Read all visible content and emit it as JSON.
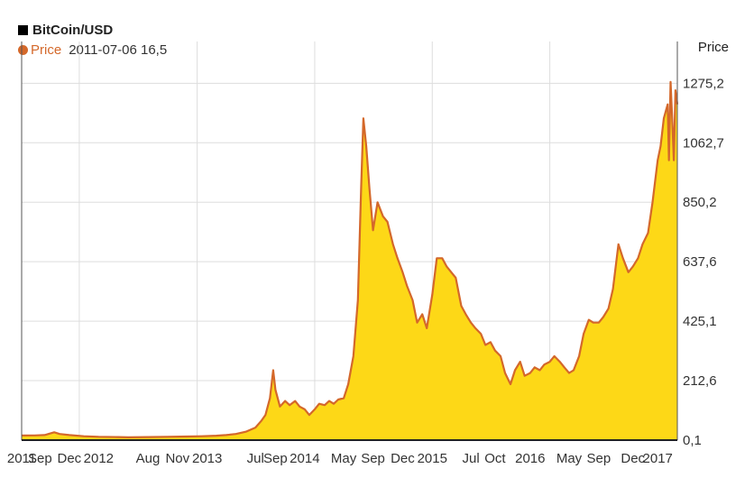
{
  "legend": {
    "title": "BitCoin/USD",
    "series_name": "Price",
    "highlight_date": "2011-07-06",
    "highlight_value": "16,5",
    "series_color": "#d4682a",
    "marker_color": "#000000"
  },
  "chart_data": {
    "type": "area",
    "title": "BitCoin/USD",
    "ylabel": "Price",
    "xlabel": "",
    "ylim": [
      0.1,
      1360
    ],
    "grid": true,
    "legend_position": "top-left",
    "line_color": "#d4682a",
    "fill_color": "#fdd817",
    "y_ticks": [
      {
        "value": 0.1,
        "label": "0,1"
      },
      {
        "value": 212.6,
        "label": "212,6"
      },
      {
        "value": 425.1,
        "label": "425,1"
      },
      {
        "value": 637.6,
        "label": "637,6"
      },
      {
        "value": 850.2,
        "label": "850,2"
      },
      {
        "value": 1062.7,
        "label": "1062,7"
      },
      {
        "value": 1275.2,
        "label": "1275,2"
      }
    ],
    "x_range": [
      "2011-07-06",
      "2017-01-31"
    ],
    "x_ticks": [
      {
        "date": "2011-07-06",
        "label": "2011"
      },
      {
        "date": "2011-09-01",
        "label": "Sep"
      },
      {
        "date": "2011-12-01",
        "label": "Dec"
      },
      {
        "date": "2012-03-01",
        "label": "2012"
      },
      {
        "date": "2012-08-01",
        "label": "Aug"
      },
      {
        "date": "2012-11-01",
        "label": "Nov"
      },
      {
        "date": "2013-02-01",
        "label": "2013"
      },
      {
        "date": "2013-07-01",
        "label": "Jul"
      },
      {
        "date": "2013-09-01",
        "label": "Sep"
      },
      {
        "date": "2013-12-01",
        "label": "2014"
      },
      {
        "date": "2014-04-01",
        "label": "May"
      },
      {
        "date": "2014-07-01",
        "label": "Sep"
      },
      {
        "date": "2014-10-01",
        "label": "Dec"
      },
      {
        "date": "2015-01-01",
        "label": "2015"
      },
      {
        "date": "2015-05-01",
        "label": "Jul"
      },
      {
        "date": "2015-07-15",
        "label": "Oct"
      },
      {
        "date": "2015-11-01",
        "label": "2016"
      },
      {
        "date": "2016-03-01",
        "label": "May"
      },
      {
        "date": "2016-06-01",
        "label": "Sep"
      },
      {
        "date": "2016-09-15",
        "label": "Dec"
      },
      {
        "date": "2016-12-01",
        "label": "2017"
      }
    ],
    "gridline_dates": [
      "2012-01-01",
      "2013-01-01",
      "2014-01-01",
      "2015-01-01",
      "2016-01-01"
    ],
    "series": [
      {
        "name": "Price",
        "points": [
          [
            "2011-07-06",
            16.5
          ],
          [
            "2011-08-15",
            17
          ],
          [
            "2011-09-15",
            18
          ],
          [
            "2011-10-15",
            28
          ],
          [
            "2011-11-01",
            22
          ],
          [
            "2011-12-01",
            18
          ],
          [
            "2012-01-15",
            14
          ],
          [
            "2012-03-01",
            12
          ],
          [
            "2012-05-01",
            11
          ],
          [
            "2012-06-01",
            10
          ],
          [
            "2012-08-01",
            11
          ],
          [
            "2012-10-01",
            12
          ],
          [
            "2012-12-01",
            13
          ],
          [
            "2013-01-15",
            14
          ],
          [
            "2013-03-01",
            16
          ],
          [
            "2013-04-01",
            18
          ],
          [
            "2013-05-01",
            22
          ],
          [
            "2013-06-01",
            30
          ],
          [
            "2013-07-01",
            45
          ],
          [
            "2013-07-20",
            70
          ],
          [
            "2013-08-01",
            90
          ],
          [
            "2013-08-15",
            150
          ],
          [
            "2013-08-25",
            250
          ],
          [
            "2013-09-01",
            180
          ],
          [
            "2013-09-15",
            120
          ],
          [
            "2013-10-01",
            140
          ],
          [
            "2013-10-15",
            125
          ],
          [
            "2013-11-01",
            140
          ],
          [
            "2013-11-15",
            120
          ],
          [
            "2013-12-01",
            110
          ],
          [
            "2013-12-15",
            90
          ],
          [
            "2014-01-01",
            110
          ],
          [
            "2014-01-15",
            130
          ],
          [
            "2014-02-01",
            125
          ],
          [
            "2014-02-15",
            140
          ],
          [
            "2014-03-01",
            130
          ],
          [
            "2014-03-15",
            145
          ],
          [
            "2014-04-01",
            150
          ],
          [
            "2014-04-15",
            200
          ],
          [
            "2014-05-01",
            300
          ],
          [
            "2014-05-15",
            500
          ],
          [
            "2014-05-25",
            900
          ],
          [
            "2014-06-01",
            1150
          ],
          [
            "2014-06-10",
            1050
          ],
          [
            "2014-06-20",
            900
          ],
          [
            "2014-07-01",
            750
          ],
          [
            "2014-07-15",
            850
          ],
          [
            "2014-08-01",
            800
          ],
          [
            "2014-08-15",
            780
          ],
          [
            "2014-09-01",
            700
          ],
          [
            "2014-09-15",
            650
          ],
          [
            "2014-10-01",
            600
          ],
          [
            "2014-10-15",
            550
          ],
          [
            "2014-11-01",
            500
          ],
          [
            "2014-11-15",
            420
          ],
          [
            "2014-12-01",
            450
          ],
          [
            "2014-12-15",
            400
          ],
          [
            "2015-01-01",
            520
          ],
          [
            "2015-01-15",
            650
          ],
          [
            "2015-02-01",
            650
          ],
          [
            "2015-02-15",
            620
          ],
          [
            "2015-03-01",
            600
          ],
          [
            "2015-03-15",
            580
          ],
          [
            "2015-04-01",
            480
          ],
          [
            "2015-04-15",
            450
          ],
          [
            "2015-05-01",
            420
          ],
          [
            "2015-05-15",
            400
          ],
          [
            "2015-06-01",
            380
          ],
          [
            "2015-06-15",
            340
          ],
          [
            "2015-07-01",
            350
          ],
          [
            "2015-07-15",
            320
          ],
          [
            "2015-08-01",
            300
          ],
          [
            "2015-08-15",
            240
          ],
          [
            "2015-09-01",
            200
          ],
          [
            "2015-09-15",
            250
          ],
          [
            "2015-10-01",
            280
          ],
          [
            "2015-10-15",
            230
          ],
          [
            "2015-11-01",
            240
          ],
          [
            "2015-11-15",
            260
          ],
          [
            "2015-12-01",
            250
          ],
          [
            "2015-12-15",
            270
          ],
          [
            "2016-01-01",
            280
          ],
          [
            "2016-01-15",
            300
          ],
          [
            "2016-02-01",
            280
          ],
          [
            "2016-02-15",
            260
          ],
          [
            "2016-03-01",
            240
          ],
          [
            "2016-03-15",
            250
          ],
          [
            "2016-04-01",
            300
          ],
          [
            "2016-04-15",
            380
          ],
          [
            "2016-05-01",
            430
          ],
          [
            "2016-05-15",
            420
          ],
          [
            "2016-06-01",
            420
          ],
          [
            "2016-06-15",
            440
          ],
          [
            "2016-07-01",
            470
          ],
          [
            "2016-07-15",
            540
          ],
          [
            "2016-08-01",
            700
          ],
          [
            "2016-08-15",
            650
          ],
          [
            "2016-09-01",
            600
          ],
          [
            "2016-09-15",
            620
          ],
          [
            "2016-10-01",
            650
          ],
          [
            "2016-10-15",
            700
          ],
          [
            "2016-11-01",
            740
          ],
          [
            "2016-11-15",
            850
          ],
          [
            "2016-12-01",
            1000
          ],
          [
            "2016-12-10",
            1050
          ],
          [
            "2016-12-20",
            1150
          ],
          [
            "2017-01-01",
            1200
          ],
          [
            "2017-01-05",
            1000
          ],
          [
            "2017-01-10",
            1280
          ],
          [
            "2017-01-15",
            1150
          ],
          [
            "2017-01-20",
            1000
          ],
          [
            "2017-01-25",
            1250
          ],
          [
            "2017-01-31",
            1200
          ]
        ]
      }
    ]
  }
}
